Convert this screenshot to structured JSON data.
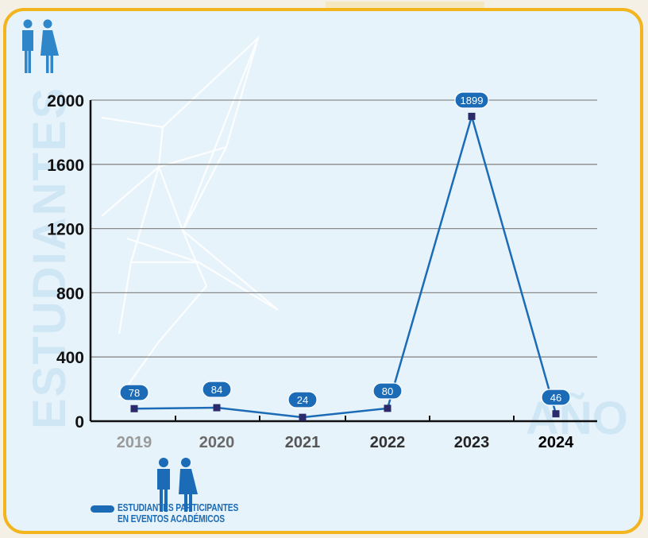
{
  "chart_data": {
    "type": "line",
    "x": [
      "2019",
      "2020",
      "2021",
      "2022",
      "2023",
      "2024"
    ],
    "series": [
      {
        "name": "ESTUDIANTES PARTICIPANTES EN EVENTOS ACADÉMICOS",
        "values": [
          78,
          84,
          24,
          80,
          1899,
          46
        ],
        "data_labels": [
          "78",
          "84",
          "24",
          "80",
          "1899",
          "46"
        ]
      }
    ],
    "ylabel": "ESTUDIANTES",
    "xlabel": "AÑO",
    "y_ticks": [
      "2000",
      "1600",
      "1200",
      "800",
      "400",
      "0"
    ],
    "ylim": [
      0,
      2000
    ],
    "grid": true,
    "legend_position": "bottom-left"
  },
  "legend": {
    "line1": "ESTUDIANTES PARTICIPANTES",
    "line2": "EN EVENTOS ACADÉMICOS"
  },
  "colors": {
    "frame_border": "#f2b51e",
    "panel_bg": "#e7f3fb",
    "series": "#1b6bb6",
    "marker": "#2b2a6a",
    "watermark": "#d3e9f6",
    "grid": "#8a8a8a"
  },
  "icons": [
    "students-icon",
    "students-icon"
  ]
}
